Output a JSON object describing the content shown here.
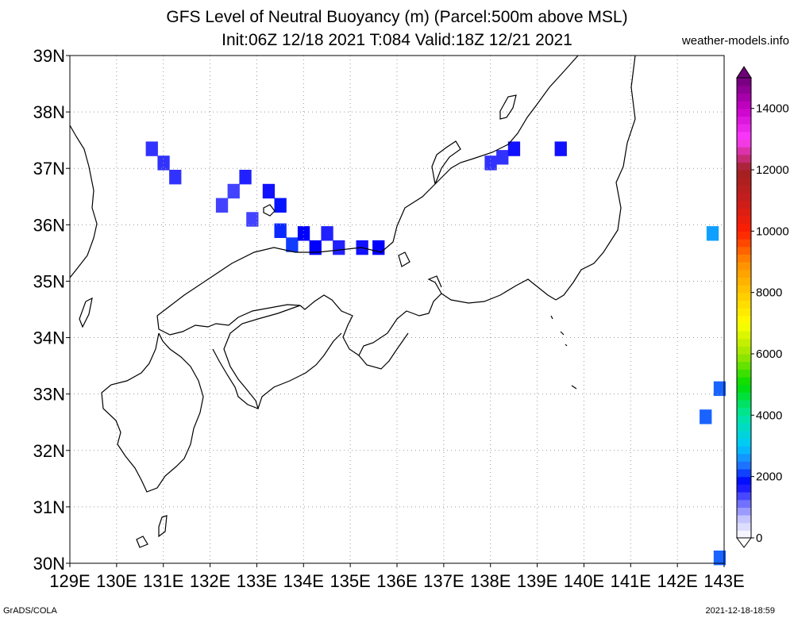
{
  "title": {
    "line1": "GFS Level of Neutral Buoyancy (m) (Parcel:500m above MSL)",
    "line2": "Init:06Z 12/18 2021 T:084 Valid:18Z 12/21 2021"
  },
  "source_site": "weather-models.info",
  "footer": {
    "left": "GrADS/COLA",
    "right": "2021-12-18-18:59"
  },
  "map": {
    "lon_range": [
      129,
      143
    ],
    "lat_range": [
      30,
      39
    ],
    "lon_labels": [
      "129E",
      "130E",
      "131E",
      "132E",
      "133E",
      "134E",
      "135E",
      "136E",
      "137E",
      "138E",
      "139E",
      "140E",
      "141E",
      "142E",
      "143E"
    ],
    "lat_labels": [
      "39N",
      "38N",
      "37N",
      "36N",
      "35N",
      "34N",
      "33N",
      "32N",
      "31N",
      "30N"
    ],
    "grid": "dotted",
    "coastline_color": "#000000"
  },
  "colorbar": {
    "labels": [
      "0",
      "2000",
      "4000",
      "6000",
      "8000",
      "10000",
      "12000",
      "14000"
    ],
    "max": 15000
  },
  "lnb_cells": [
    {
      "lon": 130.75,
      "lat": 37.35,
      "value": 1500
    },
    {
      "lon": 131.0,
      "lat": 37.1,
      "value": 1500
    },
    {
      "lon": 131.25,
      "lat": 36.85,
      "value": 1500
    },
    {
      "lon": 132.25,
      "lat": 36.35,
      "value": 1400
    },
    {
      "lon": 132.5,
      "lat": 36.6,
      "value": 1400
    },
    {
      "lon": 132.75,
      "lat": 36.85,
      "value": 1600
    },
    {
      "lon": 133.25,
      "lat": 36.6,
      "value": 1700
    },
    {
      "lon": 133.5,
      "lat": 36.35,
      "value": 1900
    },
    {
      "lon": 132.9,
      "lat": 36.1,
      "value": 1400
    },
    {
      "lon": 133.5,
      "lat": 35.9,
      "value": 2000
    },
    {
      "lon": 133.75,
      "lat": 35.65,
      "value": 2100
    },
    {
      "lon": 134.0,
      "lat": 35.85,
      "value": 1800
    },
    {
      "lon": 134.5,
      "lat": 35.85,
      "value": 1600
    },
    {
      "lon": 134.25,
      "lat": 35.6,
      "value": 1800
    },
    {
      "lon": 134.75,
      "lat": 35.6,
      "value": 1600
    },
    {
      "lon": 135.25,
      "lat": 35.6,
      "value": 1700
    },
    {
      "lon": 135.6,
      "lat": 35.6,
      "value": 1800
    },
    {
      "lon": 138.0,
      "lat": 37.1,
      "value": 1500
    },
    {
      "lon": 138.25,
      "lat": 37.2,
      "value": 1500
    },
    {
      "lon": 138.5,
      "lat": 37.35,
      "value": 1700
    },
    {
      "lon": 139.5,
      "lat": 37.35,
      "value": 1700
    },
    {
      "lon": 142.75,
      "lat": 35.85,
      "value": 2700
    },
    {
      "lon": 142.9,
      "lat": 33.1,
      "value": 2300
    },
    {
      "lon": 142.6,
      "lat": 32.6,
      "value": 2300
    },
    {
      "lon": 142.9,
      "lat": 30.1,
      "value": 2300
    }
  ]
}
